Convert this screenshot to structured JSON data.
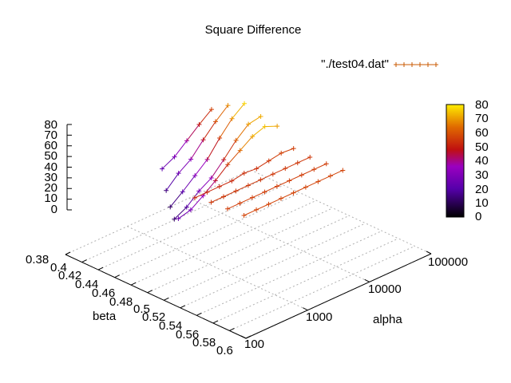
{
  "chart_data": {
    "type": "surface3d",
    "title": "Square Difference",
    "xlabel": "alpha",
    "ylabel": "beta",
    "zlabel": "",
    "x_scale": "log",
    "x_ticks": [
      "100",
      "1000",
      "10000",
      "100000"
    ],
    "y_ticks": [
      "0.38",
      "0.4",
      "0.42",
      "0.44",
      "0.46",
      "0.48",
      "0.5",
      "0.52",
      "0.54",
      "0.56",
      "0.58",
      "0.6"
    ],
    "z_ticks": [
      "80",
      "70",
      "60",
      "50",
      "40",
      "30",
      "20",
      "10",
      "0"
    ],
    "zlim": [
      0,
      80
    ],
    "grid": true,
    "legend": {
      "placement": "top-right",
      "label": "\"./test04.dat\""
    },
    "colorbox": {
      "range": [
        0,
        80
      ],
      "ticks": [
        "80",
        "70",
        "60",
        "50",
        "40",
        "30",
        "20",
        "10",
        "0"
      ]
    },
    "beta": [
      0.4,
      0.42,
      0.44,
      0.46,
      0.48,
      0.5,
      0.52,
      0.54,
      0.56
    ],
    "log10_alpha": [
      2.5,
      2.7,
      2.9,
      3.1,
      3.3,
      3.5,
      3.7,
      3.9,
      4.1
    ],
    "series": [
      {
        "beta": 0.4,
        "z": [
          null,
          null,
          null,
          null,
          22,
          28,
          38,
          48,
          57
        ]
      },
      {
        "beta": 0.42,
        "z": [
          null,
          null,
          null,
          14,
          25,
          33,
          46,
          58,
          68
        ]
      },
      {
        "beta": 0.44,
        "z": [
          null,
          null,
          11,
          20,
          30,
          40,
          55,
          68,
          77
        ]
      },
      {
        "beta": 0.46,
        "z": [
          null,
          12,
          18,
          28,
          35,
          47,
          60,
          70,
          72
        ]
      },
      {
        "beta": 0.48,
        "z": [
          25,
          28,
          36,
          45,
          55,
          63,
          71,
          75,
          70
        ]
      },
      {
        "beta": 0.5,
        "z": [
          52,
          52,
          52,
          52,
          54,
          53,
          55,
          57,
          56
        ]
      },
      {
        "beta": 0.52,
        "z": [
          55,
          55,
          55,
          55,
          55,
          55,
          55,
          55,
          55
        ]
      },
      {
        "beta": 0.54,
        "z": [
          56,
          56,
          56,
          56,
          56,
          56,
          56,
          56,
          56
        ]
      },
      {
        "beta": 0.56,
        "z": [
          57,
          57,
          57,
          57,
          57,
          57,
          57,
          57,
          57
        ]
      }
    ]
  }
}
